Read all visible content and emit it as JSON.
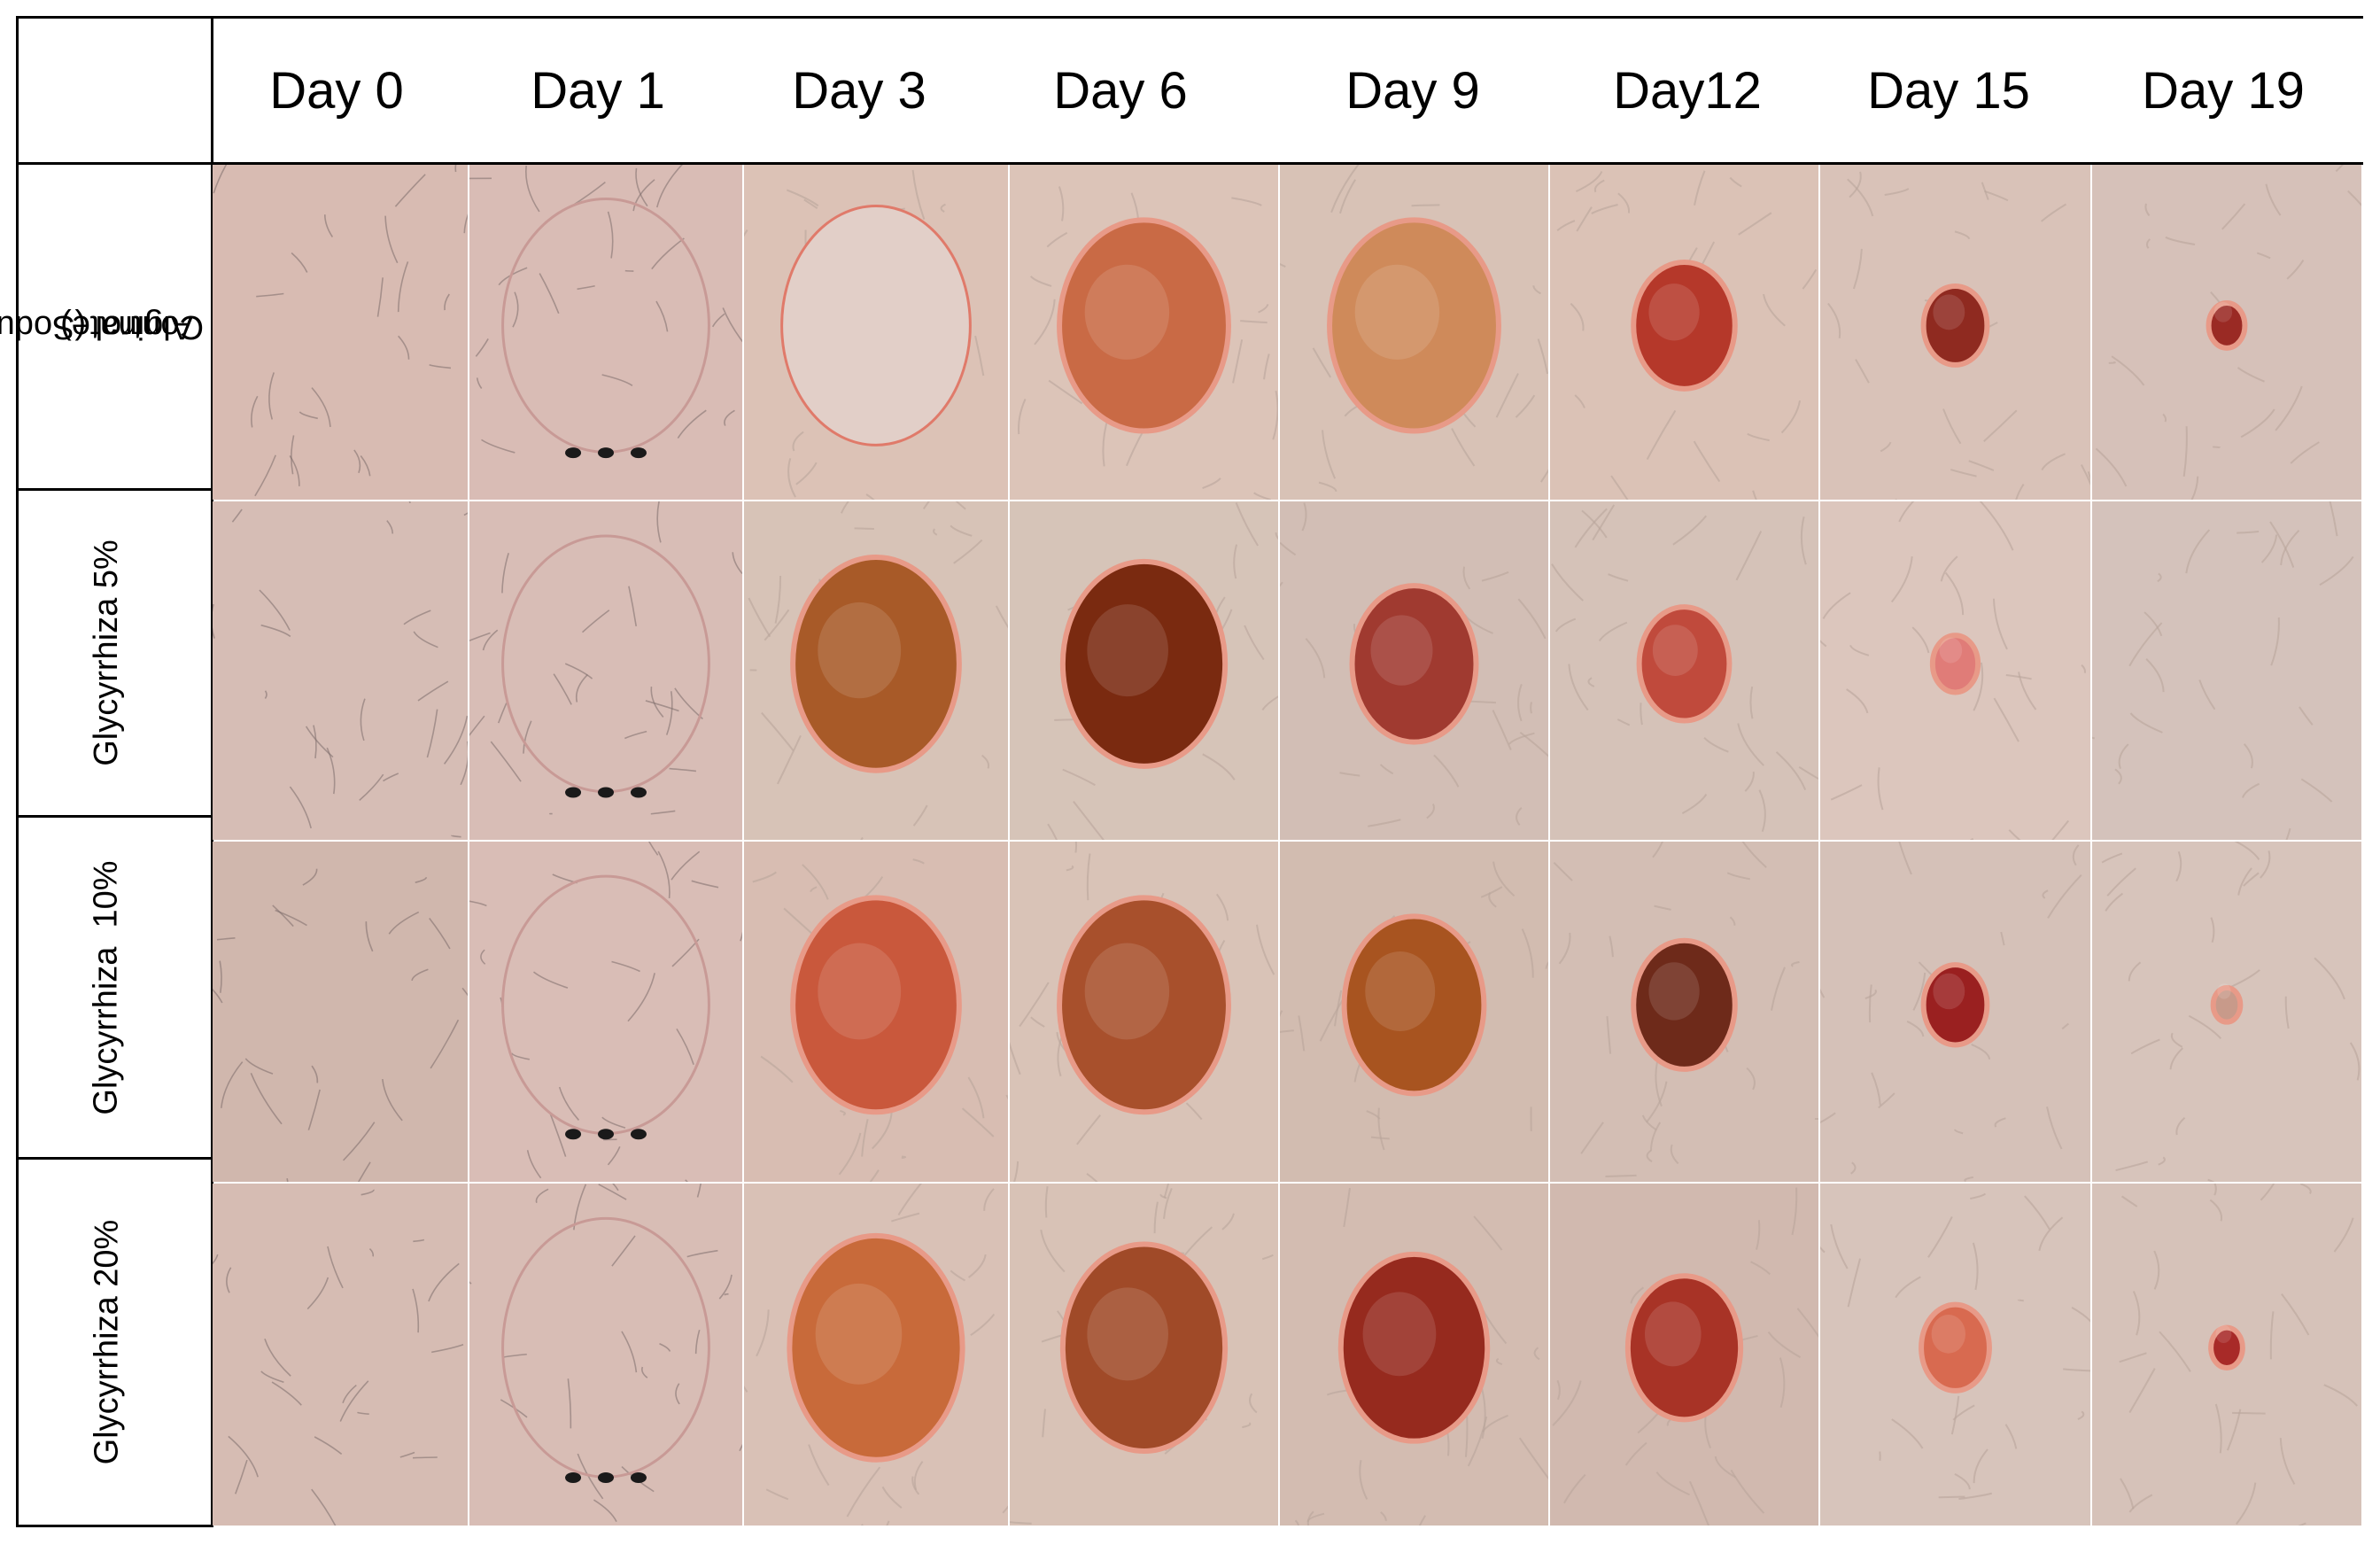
{
  "days": [
    "Day 0",
    "Day 1",
    "Day 3",
    "Day 6",
    "Day 9",
    "Day12",
    "Day 15",
    "Day 19"
  ],
  "groups": [
    {
      "label_lines": [
        "Control (Sodum",
        "Alginate)"
      ]
    },
    {
      "label_lines": [
        "Glycyrrhiza 5%"
      ]
    },
    {
      "label_lines": [
        "Glycyrrhiza  10%"
      ]
    },
    {
      "label_lines": [
        "Glycyrrhiza 20%"
      ]
    }
  ],
  "photos": [
    [
      {
        "skin": "#d8bbb2",
        "wound": "none",
        "wound_fraction": 0,
        "markers": false
      },
      {
        "skin": "#d9bcb5",
        "wound": "outline",
        "wound_fraction": 0.9,
        "markers": true
      },
      {
        "skin": "#dcc2b6",
        "wound": "pale",
        "wound_fraction": 0.85,
        "markers": false
      },
      {
        "skin": "#dcc4b8",
        "wound": "#c96a45",
        "wound_fraction": 0.75,
        "markers": false
      },
      {
        "skin": "#d8c2b6",
        "wound": "#cf8a5a",
        "wound_fraction": 0.75,
        "markers": false
      },
      {
        "skin": "#dbc2b6",
        "wound": "#b5382a",
        "wound_fraction": 0.45,
        "markers": false
      },
      {
        "skin": "#d9c2b8",
        "wound": "#8f2a20",
        "wound_fraction": 0.28,
        "markers": false
      },
      {
        "skin": "#d6c1b9",
        "wound": "#9a2a24",
        "wound_fraction": 0.16,
        "markers": false
      }
    ],
    [
      {
        "skin": "#d6bdb5",
        "wound": "none",
        "wound_fraction": 0,
        "markers": false
      },
      {
        "skin": "#d8bdb6",
        "wound": "outline",
        "wound_fraction": 0.9,
        "markers": true
      },
      {
        "skin": "#d7c3b7",
        "wound": "#a85a28",
        "wound_fraction": 0.75,
        "markers": false
      },
      {
        "skin": "#d6c4b8",
        "wound": "#7a2a10",
        "wound_fraction": 0.72,
        "markers": false
      },
      {
        "skin": "#d2beb5",
        "wound": "#a03a30",
        "wound_fraction": 0.55,
        "markers": false
      },
      {
        "skin": "#d5c2b8",
        "wound": "#c04a3c",
        "wound_fraction": 0.4,
        "markers": false
      },
      {
        "skin": "#dcc6bd",
        "wound": "#e07c78",
        "wound_fraction": 0.2,
        "markers": false
      },
      {
        "skin": "#d4c2bb",
        "wound": "none",
        "wound_fraction": 0,
        "markers": false
      }
    ],
    [
      {
        "skin": "#d0b7ad",
        "wound": "none",
        "wound_fraction": 0,
        "markers": false
      },
      {
        "skin": "#d9bdb6",
        "wound": "outline",
        "wound_fraction": 0.9,
        "markers": true
      },
      {
        "skin": "#d8bdb2",
        "wound": "#c9583c",
        "wound_fraction": 0.75,
        "markers": false
      },
      {
        "skin": "#d9c3b7",
        "wound": "#a8502c",
        "wound_fraction": 0.75,
        "markers": false
      },
      {
        "skin": "#d2bcb0",
        "wound": "#a85420",
        "wound_fraction": 0.62,
        "markers": false
      },
      {
        "skin": "#d3beb4",
        "wound": "#6e2a1a",
        "wound_fraction": 0.45,
        "markers": false
      },
      {
        "skin": "#d5c1b8",
        "wound": "#9a2020",
        "wound_fraction": 0.28,
        "markers": false
      },
      {
        "skin": "#d7c4bb",
        "wound": "#c89a8a",
        "wound_fraction": 0.12,
        "markers": false
      }
    ],
    [
      {
        "skin": "#d6bcb3",
        "wound": "none",
        "wound_fraction": 0,
        "markers": false
      },
      {
        "skin": "#d8bdb5",
        "wound": "outline",
        "wound_fraction": 0.9,
        "markers": true
      },
      {
        "skin": "#d9c1b6",
        "wound": "#c86a3a",
        "wound_fraction": 0.78,
        "markers": false
      },
      {
        "skin": "#d8c2b6",
        "wound": "#a04a28",
        "wound_fraction": 0.72,
        "markers": false
      },
      {
        "skin": "#d3bcb1",
        "wound": "#962a1e",
        "wound_fraction": 0.65,
        "markers": false
      },
      {
        "skin": "#d1b9af",
        "wound": "#a83326",
        "wound_fraction": 0.5,
        "markers": false
      },
      {
        "skin": "#d7c4bb",
        "wound": "#d86a50",
        "wound_fraction": 0.3,
        "markers": false
      },
      {
        "skin": "#d6c2b9",
        "wound": "#a82a28",
        "wound_fraction": 0.14,
        "markers": false
      }
    ]
  ],
  "colors": {
    "line": "#000000",
    "background": "#ffffff",
    "backdrop": "#c4387a"
  }
}
